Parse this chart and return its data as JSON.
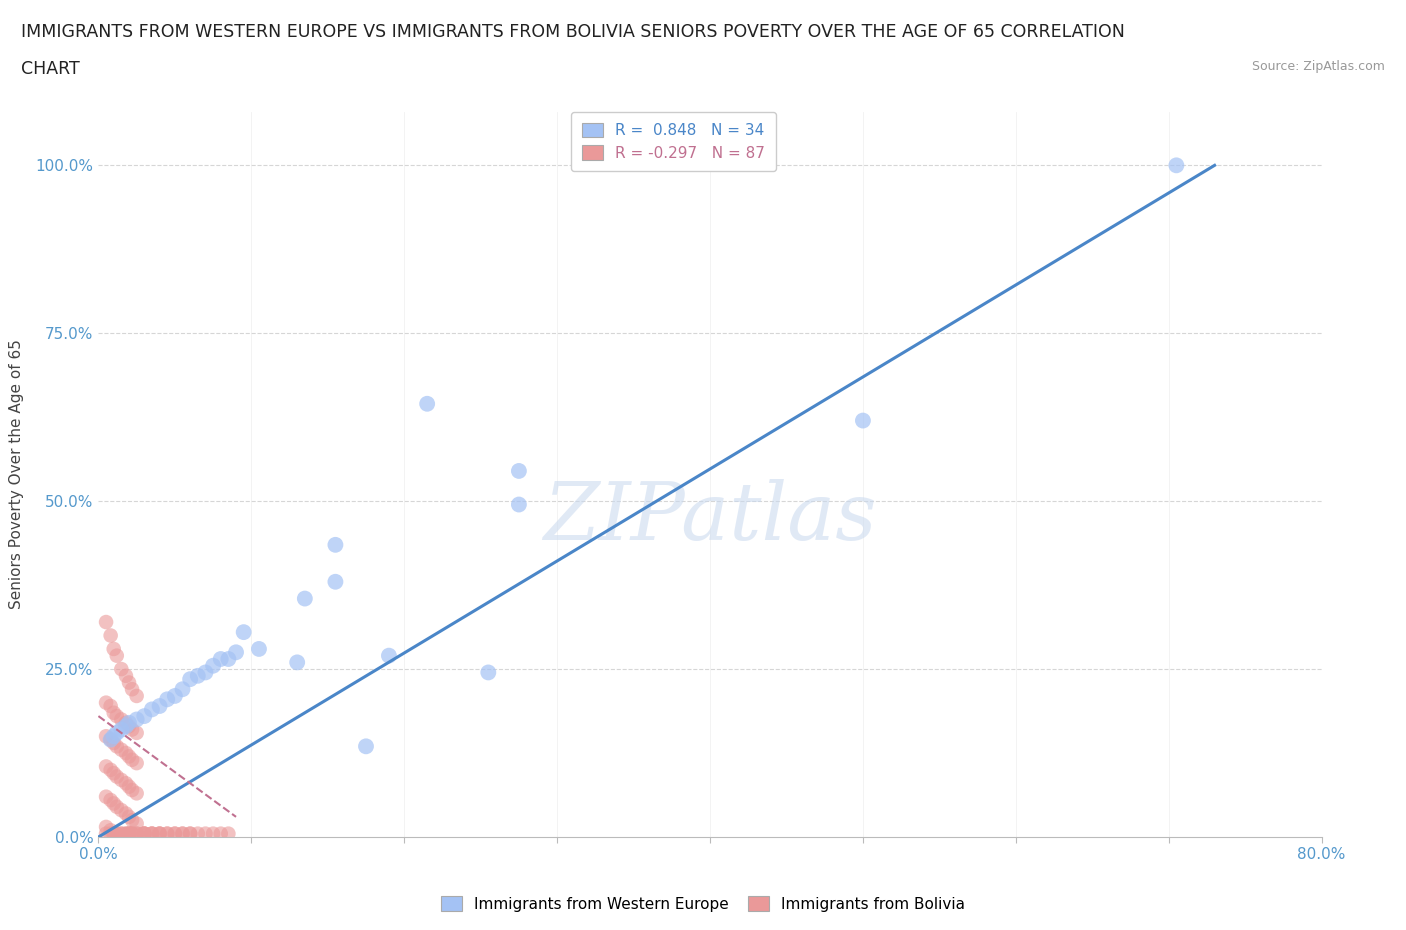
{
  "title_line1": "IMMIGRANTS FROM WESTERN EUROPE VS IMMIGRANTS FROM BOLIVIA SENIORS POVERTY OVER THE AGE OF 65 CORRELATION",
  "title_line2": "CHART",
  "source_text": "Source: ZipAtlas.com",
  "ylabel": "Seniors Poverty Over the Age of 65",
  "xlim": [
    0.0,
    0.8
  ],
  "ylim": [
    0.0,
    1.08
  ],
  "ytick_labels": [
    "0.0%",
    "25.0%",
    "50.0%",
    "75.0%",
    "100.0%"
  ],
  "ytick_vals": [
    0.0,
    0.25,
    0.5,
    0.75,
    1.0
  ],
  "xtick_vals": [
    0.0,
    0.1,
    0.2,
    0.3,
    0.4,
    0.5,
    0.6,
    0.7,
    0.8
  ],
  "xtick_labels": [
    "0.0%",
    "",
    "",
    "",
    "",
    "",
    "",
    "",
    "80.0%"
  ],
  "watermark": "ZIPatlas",
  "legend_entry1": "R =  0.848   N = 34",
  "legend_entry2": "R = -0.297   N = 87",
  "blue_color": "#a4c2f4",
  "pink_color": "#ea9999",
  "blue_line_color": "#4a86c8",
  "pink_line_color": "#c07090",
  "blue_scatter_x": [
    0.705,
    0.5,
    0.215,
    0.275,
    0.275,
    0.155,
    0.155,
    0.135,
    0.105,
    0.095,
    0.09,
    0.08,
    0.075,
    0.07,
    0.065,
    0.06,
    0.055,
    0.05,
    0.045,
    0.04,
    0.035,
    0.03,
    0.025,
    0.02,
    0.018,
    0.015,
    0.012,
    0.01,
    0.008,
    0.19,
    0.13,
    0.255,
    0.085,
    0.175
  ],
  "blue_scatter_y": [
    1.0,
    0.62,
    0.645,
    0.545,
    0.495,
    0.435,
    0.38,
    0.355,
    0.28,
    0.305,
    0.275,
    0.265,
    0.255,
    0.245,
    0.24,
    0.235,
    0.22,
    0.21,
    0.205,
    0.195,
    0.19,
    0.18,
    0.175,
    0.17,
    0.165,
    0.16,
    0.155,
    0.15,
    0.145,
    0.27,
    0.26,
    0.245,
    0.265,
    0.135
  ],
  "pink_scatter_x": [
    0.005,
    0.008,
    0.01,
    0.012,
    0.015,
    0.018,
    0.02,
    0.022,
    0.025,
    0.005,
    0.008,
    0.01,
    0.012,
    0.015,
    0.018,
    0.02,
    0.022,
    0.025,
    0.005,
    0.008,
    0.01,
    0.012,
    0.015,
    0.018,
    0.02,
    0.022,
    0.025,
    0.005,
    0.008,
    0.01,
    0.012,
    0.015,
    0.018,
    0.02,
    0.022,
    0.025,
    0.005,
    0.008,
    0.01,
    0.012,
    0.015,
    0.018,
    0.02,
    0.022,
    0.025,
    0.005,
    0.008,
    0.01,
    0.012,
    0.015,
    0.018,
    0.02,
    0.022,
    0.025,
    0.005,
    0.008,
    0.01,
    0.012,
    0.015,
    0.018,
    0.02,
    0.022,
    0.025,
    0.03,
    0.03,
    0.03,
    0.03,
    0.035,
    0.035,
    0.035,
    0.04,
    0.04,
    0.04,
    0.045,
    0.045,
    0.05,
    0.05,
    0.055,
    0.055,
    0.06,
    0.06,
    0.065,
    0.07,
    0.075,
    0.08,
    0.085,
    0.02
  ],
  "pink_scatter_y": [
    0.32,
    0.3,
    0.28,
    0.27,
    0.25,
    0.24,
    0.23,
    0.22,
    0.21,
    0.2,
    0.195,
    0.185,
    0.18,
    0.175,
    0.17,
    0.165,
    0.16,
    0.155,
    0.15,
    0.145,
    0.14,
    0.135,
    0.13,
    0.125,
    0.12,
    0.115,
    0.11,
    0.105,
    0.1,
    0.095,
    0.09,
    0.085,
    0.08,
    0.075,
    0.07,
    0.065,
    0.06,
    0.055,
    0.05,
    0.045,
    0.04,
    0.035,
    0.03,
    0.025,
    0.02,
    0.015,
    0.01,
    0.005,
    0.005,
    0.005,
    0.005,
    0.005,
    0.005,
    0.005,
    0.005,
    0.005,
    0.005,
    0.005,
    0.005,
    0.005,
    0.005,
    0.005,
    0.005,
    0.005,
    0.005,
    0.005,
    0.005,
    0.005,
    0.005,
    0.005,
    0.005,
    0.005,
    0.005,
    0.005,
    0.005,
    0.005,
    0.005,
    0.005,
    0.005,
    0.005,
    0.005,
    0.005,
    0.005,
    0.005,
    0.005,
    0.005,
    0.005
  ],
  "blue_line_x": [
    0.0,
    0.73
  ],
  "blue_line_y": [
    0.0,
    1.0
  ],
  "pink_line_x": [
    0.0,
    0.09
  ],
  "pink_line_y": [
    0.18,
    0.03
  ]
}
